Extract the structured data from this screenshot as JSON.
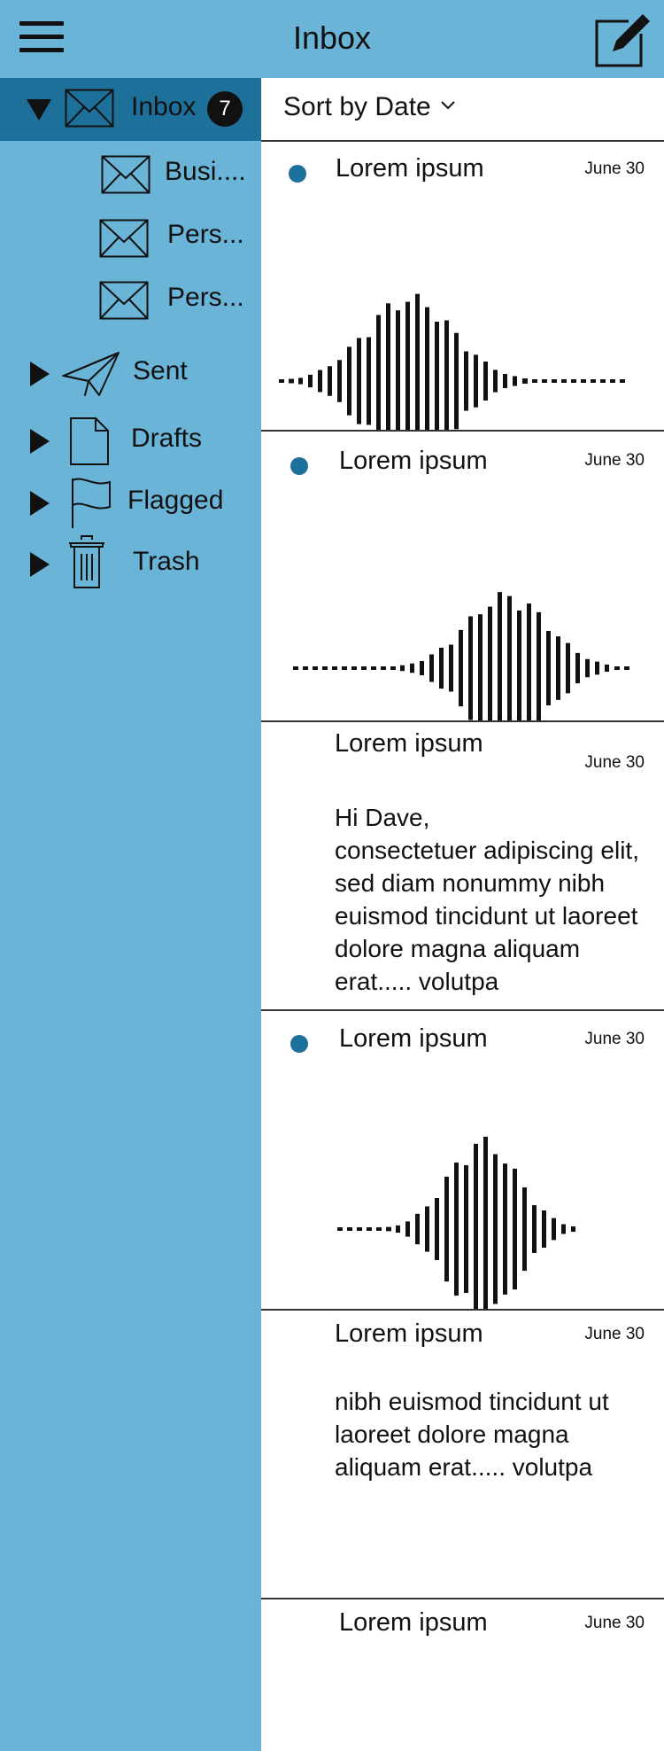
{
  "header": {
    "title": "Inbox",
    "menu_icon": "hamburger-menu-icon",
    "compose_icon": "compose-pencil-icon"
  },
  "sidebar": {
    "inbox": {
      "label": "Inbox",
      "badge": "7"
    },
    "subfolders": [
      {
        "label": "Busi...."
      },
      {
        "label": "Pers..."
      },
      {
        "label": "Pers..."
      }
    ],
    "folders": [
      {
        "label": "Sent",
        "icon": "paper-plane-icon"
      },
      {
        "label": "Drafts",
        "icon": "document-icon"
      },
      {
        "label": "Flagged",
        "icon": "flag-icon"
      },
      {
        "label": "Trash",
        "icon": "trash-icon"
      }
    ]
  },
  "sort": {
    "label": "Sort by Date"
  },
  "messages": [
    {
      "subject": "Lorem ipsum",
      "date": "June 30",
      "unread": true,
      "type": "audio"
    },
    {
      "subject": "Lorem ipsum",
      "date": "June 30",
      "unread": true,
      "type": "audio"
    },
    {
      "subject": "Lorem ipsum",
      "date": "June 30",
      "unread": false,
      "type": "text",
      "body": "Hi Dave,\nconsectetuer adipiscing elit, sed diam nonummy nibh euismod tincidunt ut laoreet dolore magna aliquam erat..... volutpa"
    },
    {
      "subject": "Lorem ipsum",
      "date": "June 30",
      "unread": true,
      "type": "audio"
    },
    {
      "subject": "Lorem ipsum",
      "date": "June 30",
      "unread": false,
      "type": "text",
      "body": "nibh euismod tincidunt ut laoreet dolore magna aliquam erat..... volutpa"
    },
    {
      "subject": "Lorem ipsum",
      "date": "June 30",
      "unread": false,
      "type": "text",
      "body": ""
    }
  ],
  "colors": {
    "background": "#6ab4d8",
    "active": "#1d7099",
    "unread_dot": "#1d7099"
  }
}
